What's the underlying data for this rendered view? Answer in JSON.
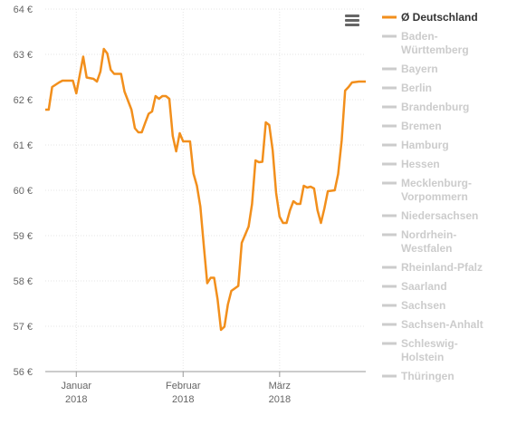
{
  "chart_data": {
    "type": "line",
    "ylim": [
      56,
      64
    ],
    "yticks": [
      "56 €",
      "57 €",
      "58 €",
      "59 €",
      "60 €",
      "61 €",
      "62 €",
      "63 €",
      "64 €"
    ],
    "ytick_values": [
      56,
      57,
      58,
      59,
      60,
      61,
      62,
      63,
      64
    ],
    "xlim": [
      "2017-12-23",
      "2018-03-26"
    ],
    "xticks": [
      {
        "date": "2018-01-01",
        "line1": "Januar",
        "line2": "2018"
      },
      {
        "date": "2018-02-01",
        "line1": "Februar",
        "line2": "2018"
      },
      {
        "date": "2018-03-01",
        "line1": "März",
        "line2": "2018"
      }
    ],
    "grid": true,
    "legend_position": "right",
    "series": [
      {
        "name": "Ø Deutschland",
        "color": "#f28f1c",
        "active": true,
        "points": [
          [
            "2017-12-23",
            61.78
          ],
          [
            "2017-12-24",
            61.78
          ],
          [
            "2017-12-25",
            62.28
          ],
          [
            "2017-12-27",
            62.38
          ],
          [
            "2017-12-28",
            62.42
          ],
          [
            "2017-12-31",
            62.42
          ],
          [
            "2018-01-01",
            62.14
          ],
          [
            "2018-01-03",
            62.95
          ],
          [
            "2018-01-04",
            62.49
          ],
          [
            "2018-01-06",
            62.46
          ],
          [
            "2018-01-07",
            62.4
          ],
          [
            "2018-01-08",
            62.62
          ],
          [
            "2018-01-09",
            63.12
          ],
          [
            "2018-01-10",
            63.02
          ],
          [
            "2018-01-11",
            62.66
          ],
          [
            "2018-01-12",
            62.57
          ],
          [
            "2018-01-14",
            62.57
          ],
          [
            "2018-01-15",
            62.18
          ],
          [
            "2018-01-17",
            61.78
          ],
          [
            "2018-01-18",
            61.37
          ],
          [
            "2018-01-19",
            61.28
          ],
          [
            "2018-01-20",
            61.28
          ],
          [
            "2018-01-21",
            61.49
          ],
          [
            "2018-01-22",
            61.69
          ],
          [
            "2018-01-23",
            61.74
          ],
          [
            "2018-01-24",
            62.08
          ],
          [
            "2018-01-25",
            62.02
          ],
          [
            "2018-01-26",
            62.08
          ],
          [
            "2018-01-27",
            62.08
          ],
          [
            "2018-01-28",
            62.02
          ],
          [
            "2018-01-29",
            61.2
          ],
          [
            "2018-01-30",
            60.86
          ],
          [
            "2018-01-31",
            61.26
          ],
          [
            "2018-02-01",
            61.08
          ],
          [
            "2018-02-03",
            61.08
          ],
          [
            "2018-02-04",
            60.37
          ],
          [
            "2018-02-05",
            60.1
          ],
          [
            "2018-02-06",
            59.64
          ],
          [
            "2018-02-07",
            58.78
          ],
          [
            "2018-02-08",
            57.95
          ],
          [
            "2018-02-09",
            58.07
          ],
          [
            "2018-02-10",
            58.07
          ],
          [
            "2018-02-11",
            57.6
          ],
          [
            "2018-02-12",
            56.92
          ],
          [
            "2018-02-13",
            56.99
          ],
          [
            "2018-02-14",
            57.48
          ],
          [
            "2018-02-15",
            57.78
          ],
          [
            "2018-02-17",
            57.89
          ],
          [
            "2018-02-18",
            58.84
          ],
          [
            "2018-02-20",
            59.2
          ],
          [
            "2018-02-21",
            59.7
          ],
          [
            "2018-02-22",
            60.66
          ],
          [
            "2018-02-23",
            60.62
          ],
          [
            "2018-02-24",
            60.63
          ],
          [
            "2018-02-25",
            61.5
          ],
          [
            "2018-02-26",
            61.44
          ],
          [
            "2018-02-27",
            60.88
          ],
          [
            "2018-02-28",
            59.94
          ],
          [
            "2018-03-01",
            59.42
          ],
          [
            "2018-03-02",
            59.28
          ],
          [
            "2018-03-03",
            59.28
          ],
          [
            "2018-03-04",
            59.56
          ],
          [
            "2018-03-05",
            59.76
          ],
          [
            "2018-03-06",
            59.7
          ],
          [
            "2018-03-07",
            59.7
          ],
          [
            "2018-03-08",
            60.1
          ],
          [
            "2018-03-09",
            60.06
          ],
          [
            "2018-03-10",
            60.08
          ],
          [
            "2018-03-11",
            60.04
          ],
          [
            "2018-03-12",
            59.56
          ],
          [
            "2018-03-13",
            59.28
          ],
          [
            "2018-03-14",
            59.6
          ],
          [
            "2018-03-15",
            59.98
          ],
          [
            "2018-03-17",
            60.0
          ],
          [
            "2018-03-18",
            60.36
          ],
          [
            "2018-03-19",
            61.1
          ],
          [
            "2018-03-20",
            62.2
          ],
          [
            "2018-03-21",
            62.28
          ],
          [
            "2018-03-22",
            62.38
          ],
          [
            "2018-03-24",
            62.4
          ],
          [
            "2018-03-26",
            62.4
          ]
        ]
      },
      {
        "name": "Baden-\nWürttemberg",
        "color": "#cccccc",
        "active": false
      },
      {
        "name": "Bayern",
        "color": "#cccccc",
        "active": false
      },
      {
        "name": "Berlin",
        "color": "#cccccc",
        "active": false
      },
      {
        "name": "Brandenburg",
        "color": "#cccccc",
        "active": false
      },
      {
        "name": "Bremen",
        "color": "#cccccc",
        "active": false
      },
      {
        "name": "Hamburg",
        "color": "#cccccc",
        "active": false
      },
      {
        "name": "Hessen",
        "color": "#cccccc",
        "active": false
      },
      {
        "name": "Mecklenburg-\nVorpommern",
        "color": "#cccccc",
        "active": false
      },
      {
        "name": "Niedersachsen",
        "color": "#cccccc",
        "active": false
      },
      {
        "name": "Nordrhein-\nWestfalen",
        "color": "#cccccc",
        "active": false
      },
      {
        "name": "Rheinland-Pfalz",
        "color": "#cccccc",
        "active": false
      },
      {
        "name": "Saarland",
        "color": "#cccccc",
        "active": false
      },
      {
        "name": "Sachsen",
        "color": "#cccccc",
        "active": false
      },
      {
        "name": "Sachsen-Anhalt",
        "color": "#cccccc",
        "active": false
      },
      {
        "name": "Schleswig-\nHolstein",
        "color": "#cccccc",
        "active": false
      },
      {
        "name": "Thüringen",
        "color": "#cccccc",
        "active": false
      }
    ]
  },
  "menu": {
    "icon": "hamburger-menu-icon"
  }
}
